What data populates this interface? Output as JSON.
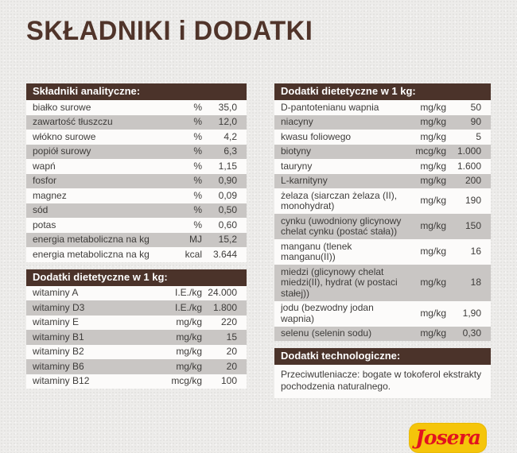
{
  "page": {
    "title": "SKŁADNIKI i DODATKI"
  },
  "colors": {
    "title_brown": "#50342a",
    "header_brown": "#4b332a",
    "row_light": "#fcfbfa",
    "row_dark": "#c9c6c4",
    "text": "#3e3c3a",
    "background": "#edecea",
    "logo_yellow": "#f5c50a",
    "logo_red": "#e2131f"
  },
  "tables": {
    "analytical": {
      "header": "Składniki analityczne:",
      "rows": [
        {
          "label": "białko surowe",
          "unit": "%",
          "value": "35,0"
        },
        {
          "label": "zawartość tłuszczu",
          "unit": "%",
          "value": "12,0"
        },
        {
          "label": "włókno surowe",
          "unit": "%",
          "value": "4,2"
        },
        {
          "label": "popiół surowy",
          "unit": "%",
          "value": "6,3"
        },
        {
          "label": "wapń",
          "unit": "%",
          "value": "1,15"
        },
        {
          "label": "fosfor",
          "unit": "%",
          "value": "0,90"
        },
        {
          "label": "magnez",
          "unit": "%",
          "value": "0,09"
        },
        {
          "label": "sód",
          "unit": "%",
          "value": "0,50"
        },
        {
          "label": "potas",
          "unit": "%",
          "value": "0,60"
        },
        {
          "label": "energia metaboliczna na kg",
          "unit": "MJ",
          "value": "15,2"
        },
        {
          "label": "energia metaboliczna na kg",
          "unit": "kcal",
          "value": "3.644"
        }
      ]
    },
    "dietary_left": {
      "header": "Dodatki dietetyczne w 1 kg:",
      "rows": [
        {
          "label": "witaminy A",
          "unit": "I.E./kg",
          "value": "24.000"
        },
        {
          "label": "witaminy D3",
          "unit": "I.E./kg",
          "value": "1.800"
        },
        {
          "label": "witaminy E",
          "unit": "mg/kg",
          "value": "220"
        },
        {
          "label": "witaminy B1",
          "unit": "mg/kg",
          "value": "15"
        },
        {
          "label": "witaminy B2",
          "unit": "mg/kg",
          "value": "20"
        },
        {
          "label": "witaminy B6",
          "unit": "mg/kg",
          "value": "20"
        },
        {
          "label": "witaminy B12",
          "unit": "mcg/kg",
          "value": "100"
        }
      ]
    },
    "dietary_right": {
      "header": "Dodatki dietetyczne w 1 kg:",
      "rows": [
        {
          "label": "D-pantotenianu wapnia",
          "unit": "mg/kg",
          "value": "50"
        },
        {
          "label": "niacyny",
          "unit": "mg/kg",
          "value": "90"
        },
        {
          "label": "kwasu foliowego",
          "unit": "mg/kg",
          "value": "5"
        },
        {
          "label": "biotyny",
          "unit": "mcg/kg",
          "value": "1.000"
        },
        {
          "label": "tauryny",
          "unit": "mg/kg",
          "value": "1.600"
        },
        {
          "label": "L-karnityny",
          "unit": "mg/kg",
          "value": "200"
        },
        {
          "label": "żelaza (siarczan żelaza (II), monohydrat)",
          "unit": "mg/kg",
          "value": "190"
        },
        {
          "label": "cynku (uwodniony glicynowy chelat cynku (postać stała))",
          "unit": "mg/kg",
          "value": "150"
        },
        {
          "label": "manganu (tlenek manganu(II))",
          "unit": "mg/kg",
          "value": "16"
        },
        {
          "label": "miedzi (glicynowy chelat miedzi(II), hydrat (w postaci stałej))",
          "unit": "mg/kg",
          "value": "18"
        },
        {
          "label": "jodu (bezwodny jodan wapnia)",
          "unit": "mg/kg",
          "value": "1,90"
        },
        {
          "label": "selenu (selenin sodu)",
          "unit": "mg/kg",
          "value": "0,30"
        }
      ]
    },
    "technological": {
      "header": "Dodatki technologiczne:",
      "text": "Przeciwutleniacze: bogate w tokoferol ekstrakty pochodzenia naturalnego."
    }
  },
  "logo": {
    "text": "Josera"
  }
}
